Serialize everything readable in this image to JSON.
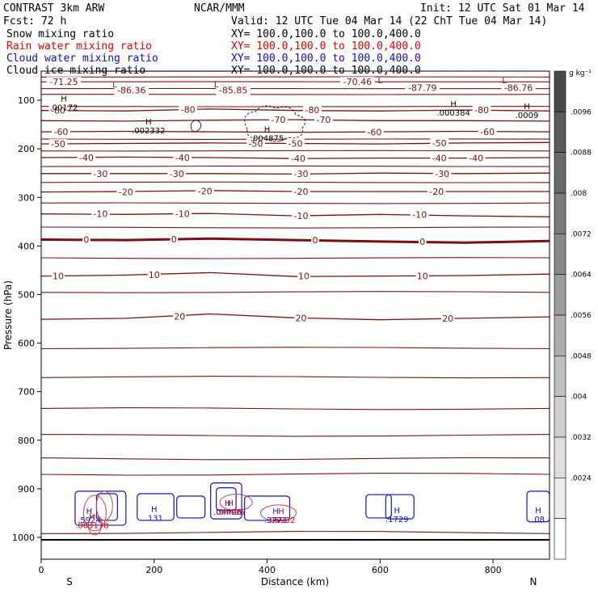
{
  "header": {
    "model": "CONTRAST  3km ARW",
    "center": "NCAR/MMM",
    "init": "Init: 12 UTC Sat 01 Mar 14",
    "fcst": "Fcst:   72 h",
    "valid": "Valid: 12 UTC Tue 04 Mar 14 (22 ChT Tue 04 Mar 14)"
  },
  "colors": {
    "snow": "#000000",
    "rain": "#e00000",
    "cloud_water": "#1010c0",
    "cloud_ice": "#000000",
    "temperature": "#7a1010",
    "rain_contour": "#cc4444"
  },
  "legend": [
    {
      "field": "Snow mixing ratio",
      "xy": "XY= 100.0,100.0 to 100.0,400.0",
      "color": "#000000"
    },
    {
      "field": "Rain water mixing ratio",
      "xy": "XY= 100.0,100.0 to 100.0,400.0",
      "color": "#e00000"
    },
    {
      "field": "Cloud water mixing ratio",
      "xy": "XY= 100.0,100.0 to 100.0,400.0",
      "color": "#1010c0"
    },
    {
      "field": "Cloud ice mixing ratio",
      "xy": "XY= 100.0,100.0 to 100.0,400.0",
      "color": "#000000"
    }
  ],
  "chart_data": {
    "type": "contour-cross-section",
    "xlabel": "Distance (km)",
    "ylabel": "Pressure (hPa)",
    "xlim": [
      0,
      900
    ],
    "ylim": [
      40,
      1045
    ],
    "xticks": [
      0,
      200,
      400,
      600,
      800
    ],
    "xtick_labels": [
      "0",
      "200",
      "400",
      "600",
      "800"
    ],
    "yticks": [
      100,
      200,
      300,
      400,
      500,
      600,
      700,
      800,
      900,
      1000
    ],
    "ytick_labels": [
      "100",
      "200",
      "300",
      "400",
      "500",
      "600",
      "700",
      "800",
      "900",
      "1000"
    ],
    "end_labels": {
      "left": "S",
      "right": "N"
    },
    "temperature_contours_C": [
      {
        "value": -80,
        "profile": [
          [
            0,
            121
          ],
          [
            150,
            122
          ],
          [
            300,
            118
          ],
          [
            450,
            121
          ],
          [
            600,
            122
          ],
          [
            750,
            120
          ],
          [
            900,
            122
          ]
        ]
      },
      {
        "value": -70,
        "profile": [
          [
            0,
            142
          ],
          [
            150,
            143
          ],
          [
            300,
            141
          ],
          [
            450,
            140
          ],
          [
            600,
            142
          ],
          [
            750,
            142
          ],
          [
            900,
            143
          ]
        ]
      },
      {
        "value": -60,
        "profile": [
          [
            0,
            165
          ],
          [
            150,
            164
          ],
          [
            300,
            165
          ],
          [
            450,
            166
          ],
          [
            600,
            165
          ],
          [
            750,
            164
          ],
          [
            900,
            165
          ]
        ]
      },
      {
        "value": -50,
        "profile": [
          [
            0,
            190
          ],
          [
            150,
            189
          ],
          [
            300,
            188
          ],
          [
            450,
            189
          ],
          [
            600,
            190
          ],
          [
            750,
            188
          ],
          [
            900,
            187
          ]
        ]
      },
      {
        "value": -40,
        "profile": [
          [
            0,
            218
          ],
          [
            150,
            217
          ],
          [
            300,
            218
          ],
          [
            450,
            220
          ],
          [
            600,
            219
          ],
          [
            750,
            219
          ],
          [
            900,
            218
          ]
        ]
      },
      {
        "value": -30,
        "profile": [
          [
            0,
            251
          ],
          [
            150,
            251
          ],
          [
            300,
            251
          ],
          [
            450,
            252
          ],
          [
            600,
            250
          ],
          [
            750,
            251
          ],
          [
            900,
            250
          ]
        ]
      },
      {
        "value": -20,
        "profile": [
          [
            0,
            289
          ],
          [
            150,
            288
          ],
          [
            300,
            286
          ],
          [
            450,
            288
          ],
          [
            600,
            288
          ],
          [
            750,
            288
          ],
          [
            900,
            288
          ]
        ]
      },
      {
        "value": -10,
        "profile": [
          [
            0,
            334
          ],
          [
            150,
            335
          ],
          [
            300,
            333
          ],
          [
            450,
            338
          ],
          [
            600,
            335
          ],
          [
            750,
            338
          ],
          [
            900,
            340
          ]
        ]
      },
      {
        "value": 0,
        "profile": [
          [
            0,
            387
          ],
          [
            150,
            388
          ],
          [
            300,
            385
          ],
          [
            450,
            388
          ],
          [
            600,
            391
          ],
          [
            750,
            393
          ],
          [
            900,
            390
          ]
        ]
      },
      {
        "value": 10,
        "profile": [
          [
            0,
            462
          ],
          [
            150,
            460
          ],
          [
            300,
            455
          ],
          [
            450,
            463
          ],
          [
            600,
            462
          ],
          [
            750,
            461
          ],
          [
            900,
            458
          ]
        ]
      },
      {
        "value": 20,
        "profile": [
          [
            0,
            551
          ],
          [
            150,
            549
          ],
          [
            300,
            540
          ],
          [
            450,
            548
          ],
          [
            600,
            552
          ],
          [
            750,
            549
          ],
          [
            900,
            546
          ]
        ]
      }
    ],
    "extra_isotherm_lines_hPa": [
      40,
      52,
      62,
      76,
      88,
      113,
      180,
      204,
      236,
      269,
      312,
      362,
      425,
      495,
      610,
      670,
      735,
      790,
      838,
      870,
      990
    ],
    "contour_labels": [
      {
        "text": "-71.25",
        "x": 40,
        "p": 62
      },
      {
        "text": "-86.36",
        "x": 160,
        "p": 79
      },
      {
        "text": "-85.85",
        "x": 340,
        "p": 79
      },
      {
        "text": "-70.46",
        "x": 560,
        "p": 62
      },
      {
        "text": "-87.79",
        "x": 675,
        "p": 74
      },
      {
        "text": "-86.76",
        "x": 845,
        "p": 74
      },
      {
        "text": "-80",
        "x": 30,
        "p": 121
      },
      {
        "text": "-80",
        "x": 260,
        "p": 119
      },
      {
        "text": "-80",
        "x": 480,
        "p": 120
      },
      {
        "text": "-80",
        "x": 780,
        "p": 120
      },
      {
        "text": "-70",
        "x": 420,
        "p": 140
      },
      {
        "text": "-70",
        "x": 500,
        "p": 140
      },
      {
        "text": "-60",
        "x": 35,
        "p": 165
      },
      {
        "text": "-60",
        "x": 590,
        "p": 166
      },
      {
        "text": "-60",
        "x": 790,
        "p": 165
      },
      {
        "text": "-50",
        "x": 30,
        "p": 190
      },
      {
        "text": "-50",
        "x": 380,
        "p": 189
      },
      {
        "text": "-50",
        "x": 450,
        "p": 189
      },
      {
        "text": "-50",
        "x": 705,
        "p": 188
      },
      {
        "text": "-40",
        "x": 80,
        "p": 218
      },
      {
        "text": "-40",
        "x": 250,
        "p": 218
      },
      {
        "text": "-40",
        "x": 455,
        "p": 220
      },
      {
        "text": "-40",
        "x": 705,
        "p": 219
      },
      {
        "text": "-40",
        "x": 770,
        "p": 219
      },
      {
        "text": "-30",
        "x": 105,
        "p": 251
      },
      {
        "text": "-30",
        "x": 240,
        "p": 251
      },
      {
        "text": "-30",
        "x": 460,
        "p": 251
      },
      {
        "text": "-30",
        "x": 710,
        "p": 251
      },
      {
        "text": "-20",
        "x": 150,
        "p": 289
      },
      {
        "text": "-20",
        "x": 290,
        "p": 287
      },
      {
        "text": "-20",
        "x": 460,
        "p": 288
      },
      {
        "text": "-20",
        "x": 700,
        "p": 288
      },
      {
        "text": "-10",
        "x": 105,
        "p": 334
      },
      {
        "text": "-10",
        "x": 250,
        "p": 334
      },
      {
        "text": "-10",
        "x": 460,
        "p": 338
      },
      {
        "text": "-10",
        "x": 670,
        "p": 335
      },
      {
        "text": "0",
        "x": 80,
        "p": 387
      },
      {
        "text": "0",
        "x": 235,
        "p": 386
      },
      {
        "text": "0",
        "x": 485,
        "p": 388
      },
      {
        "text": "0",
        "x": 675,
        "p": 391
      },
      {
        "text": "10",
        "x": 30,
        "p": 462
      },
      {
        "text": "10",
        "x": 200,
        "p": 459
      },
      {
        "text": "10",
        "x": 465,
        "p": 462
      },
      {
        "text": "10",
        "x": 675,
        "p": 462
      },
      {
        "text": "20",
        "x": 245,
        "p": 545
      },
      {
        "text": "20",
        "x": 460,
        "p": 548
      },
      {
        "text": "20",
        "x": 720,
        "p": 549
      }
    ],
    "extrema_labels": [
      {
        "type": "H",
        "value": ".00172",
        "x": 40,
        "p": 102,
        "color": "#000000"
      },
      {
        "type": "H",
        "value": ".002332",
        "x": 190,
        "p": 150,
        "color": "#000000"
      },
      {
        "type": "H",
        "value": ".004875",
        "x": 400,
        "p": 166,
        "color": "#000000"
      },
      {
        "type": "H",
        "value": ".000384",
        "x": 730,
        "p": 113,
        "color": "#000000"
      },
      {
        "type": "H",
        "value": ".0009",
        "x": 860,
        "p": 118,
        "color": "#000000"
      },
      {
        "type": "L",
        "value": "",
        "x": 130,
        "p": 73,
        "color": "#7a1010"
      },
      {
        "type": "L",
        "value": "",
        "x": 310,
        "p": 73,
        "color": "#7a1010"
      },
      {
        "type": "L",
        "value": "",
        "x": 600,
        "p": 65,
        "color": "#7a1010"
      },
      {
        "type": "L",
        "value": "",
        "x": 820,
        "p": 65,
        "color": "#7a1010"
      },
      {
        "type": "H",
        "value": ".5924",
        "x": 85,
        "p": 952,
        "color": "#1010c0"
      },
      {
        "type": "H",
        "value": ".131",
        "x": 200,
        "p": 948,
        "color": "#1010c0"
      },
      {
        "type": "H",
        "value": ".04496",
        "x": 330,
        "p": 935,
        "color": "#1010c0"
      },
      {
        "type": "H",
        "value": ".3773",
        "x": 415,
        "p": 952,
        "color": "#1010c0"
      },
      {
        "type": "H",
        "value": ".1729",
        "x": 630,
        "p": 950,
        "color": "#1010c0"
      },
      {
        "type": "H",
        "value": ".08",
        "x": 880,
        "p": 950,
        "color": "#1010c0"
      },
      {
        "type": "H",
        "value": ".003178",
        "x": 90,
        "p": 963,
        "color": "#e00000"
      },
      {
        "type": "H",
        "value": ".04496",
        "x": 335,
        "p": 935,
        "color": "#e00000"
      },
      {
        "type": "H",
        "value": ".05932",
        "x": 425,
        "p": 952,
        "color": "#e00000"
      }
    ],
    "colorbar": {
      "units": "g kg⁻¹",
      "levels": [
        ".0096",
        ".0088",
        ".008",
        ".0072",
        ".0064",
        ".0056",
        ".0048",
        ".004",
        ".0032",
        ".0024"
      ],
      "shades": [
        "#4a4a4a",
        "#5a5a5a",
        "#6a6a6a",
        "#7a7a7a",
        "#8a8a8a",
        "#9c9c9c",
        "#adadad",
        "#bebebe",
        "#cfcfcf",
        "#dedede",
        "#ececec",
        "#ffffff"
      ]
    }
  }
}
